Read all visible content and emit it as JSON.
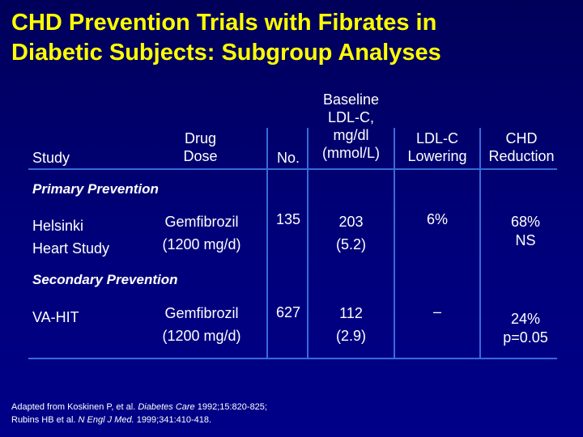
{
  "title": {
    "line1": "CHD Prevention Trials with Fibrates in",
    "line2": "Diabetic Subjects: Subgroup Analyses"
  },
  "headers": {
    "study": "Study",
    "drug_dose": [
      "Drug",
      "Dose"
    ],
    "no": "No.",
    "baseline": [
      "Baseline",
      "LDL-C,",
      "mg/dl",
      "(mmol/L)"
    ],
    "ldl_lowering": [
      "LDL-C",
      "Lowering"
    ],
    "chd_reduction": [
      "CHD",
      "Reduction"
    ]
  },
  "sections": {
    "primary": "Primary Prevention",
    "secondary": "Secondary Prevention"
  },
  "rows": [
    {
      "study": [
        "Helsinki",
        "Heart Study"
      ],
      "drug": [
        "Gemfibrozil",
        "(1200 mg/d)"
      ],
      "no": "135",
      "baseline": [
        "203",
        "(5.2)"
      ],
      "lowering": "6%",
      "reduction": [
        "68%",
        "NS"
      ]
    },
    {
      "study": [
        "VA-HIT"
      ],
      "drug": [
        "Gemfibrozil",
        "(1200 mg/d)"
      ],
      "no": "627",
      "baseline": [
        "112",
        "(2.9)"
      ],
      "lowering": "–",
      "reduction": [
        "24%",
        "p=0.05"
      ]
    }
  ],
  "footer": {
    "line1_pre": "Adapted from Koskinen P, et al. ",
    "line1_journal": "Diabetes Care",
    "line1_post": " 1992;15:820-825;",
    "line2_pre": "Rubins HB et al. ",
    "line2_journal": "N Engl J Med.",
    "line2_post": " 1999;341:410-418."
  },
  "colors": {
    "title": "#ffff00",
    "text": "#ffffff",
    "rules": "#3a6ad8",
    "background": "#000070"
  }
}
